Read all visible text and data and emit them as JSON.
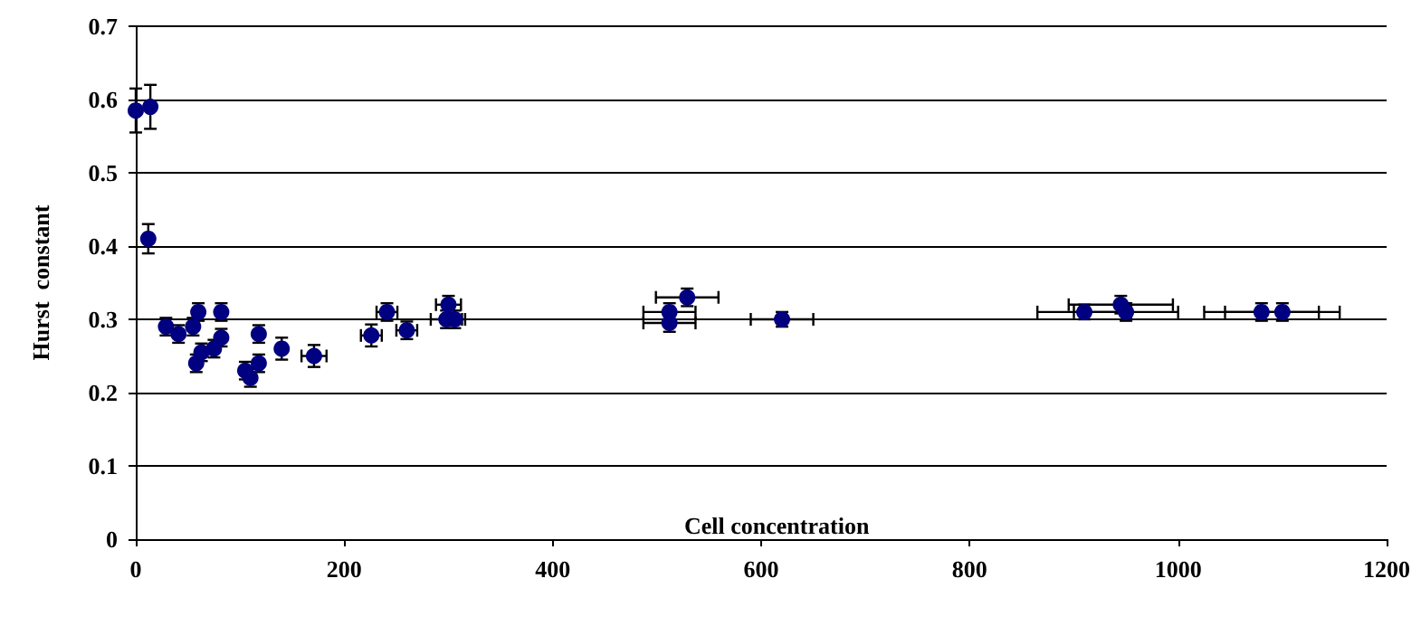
{
  "chart_data": {
    "type": "scatter",
    "xlabel": "Cell concentration",
    "ylabel": "Hurst  constant",
    "x": [
      0,
      14,
      12,
      29,
      41,
      55,
      60,
      58,
      63,
      75,
      82,
      82,
      105,
      110,
      118,
      118,
      140,
      171,
      226,
      241,
      260,
      300,
      298,
      306,
      512,
      512,
      529,
      620,
      910,
      945,
      950,
      1080,
      1100
    ],
    "series": [
      {
        "color": "#000080",
        "values": [
          0.585,
          0.59,
          0.41,
          0.29,
          0.28,
          0.29,
          0.31,
          0.24,
          0.255,
          0.26,
          0.31,
          0.275,
          0.23,
          0.22,
          0.24,
          0.28,
          0.26,
          0.25,
          0.278,
          0.31,
          0.285,
          0.32,
          0.3,
          0.3,
          0.31,
          0.295,
          0.33,
          0.3,
          0.31,
          0.32,
          0.31,
          0.31,
          0.31
        ],
        "errors": [
          0.03,
          0.03,
          0.02,
          0.012,
          0.012,
          0.012,
          0.012,
          0.012,
          0.012,
          0.012,
          0.012,
          0.012,
          0.012,
          0.012,
          0.012,
          0.012,
          0.015,
          0.015,
          0.015,
          0.012,
          0.012,
          0.012,
          0.012,
          0.012,
          0.012,
          0.012,
          0.012,
          0.01,
          0.01,
          0.012,
          0.012,
          0.012,
          0.012
        ],
        "xerrors": [
          null,
          null,
          null,
          null,
          null,
          null,
          null,
          null,
          null,
          null,
          null,
          null,
          null,
          null,
          null,
          null,
          null,
          12,
          10,
          10,
          10,
          12,
          15,
          10,
          25,
          25,
          30,
          30,
          45,
          50,
          50,
          55,
          55
        ]
      }
    ],
    "xlim": [
      0,
      1200
    ],
    "xticks": [
      0,
      200,
      400,
      600,
      800,
      1000,
      1200
    ],
    "ylim": [
      0,
      0.7
    ],
    "yticks": [
      0,
      0.1,
      0.2,
      0.3,
      0.4,
      0.5,
      0.6,
      0.7
    ],
    "grid": "y",
    "marker": "circle"
  }
}
